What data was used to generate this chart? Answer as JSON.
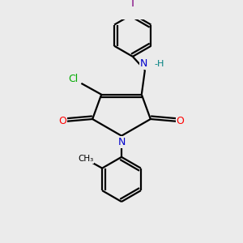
{
  "background_color": "#ebebeb",
  "bond_color": "#000000",
  "atom_colors": {
    "N": "#0000cc",
    "O": "#ff0000",
    "Cl": "#00aa00",
    "I": "#7f007f",
    "C": "#000000",
    "H": "#000000",
    "NH": "#008080"
  },
  "figsize": [
    3.0,
    3.0
  ],
  "dpi": 100,
  "lw": 1.6,
  "font_size": 8.5
}
